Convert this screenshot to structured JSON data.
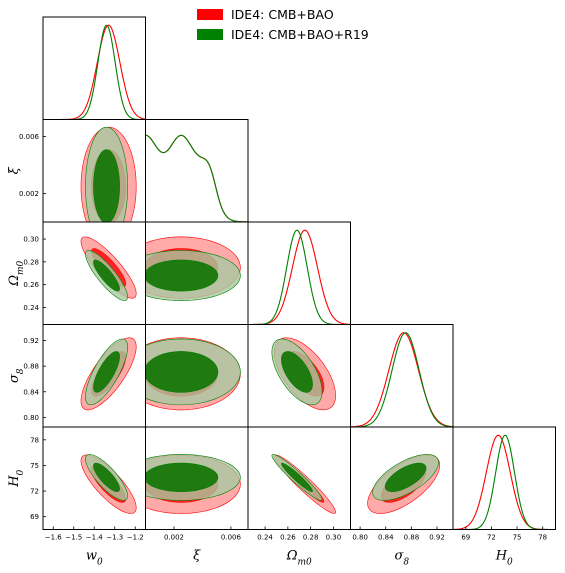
{
  "chart_data": {
    "type": "triangle",
    "title": "",
    "grid": false,
    "legend_placement": "top-right",
    "parameters": [
      {
        "key": "w0",
        "label": "w_0",
        "ticks": [
          -1.6,
          -1.5,
          -1.4,
          -1.3,
          -1.2
        ],
        "tick_labels": [
          "−1.6",
          "−1.5",
          "−1.4",
          "−1.3",
          "−1.2"
        ],
        "range": [
          -1.65,
          -1.15
        ]
      },
      {
        "key": "xi",
        "label": "ξ",
        "ticks": [
          0.002,
          0.006
        ],
        "tick_labels": [
          "0.002",
          "0.006"
        ],
        "range": [
          0.0,
          0.0072
        ]
      },
      {
        "key": "Om",
        "label": "Ω_m0",
        "ticks": [
          0.24,
          0.26,
          0.28,
          0.3
        ],
        "tick_labels": [
          "0.24",
          "0.26",
          "0.28",
          "0.30"
        ],
        "range": [
          0.225,
          0.315
        ]
      },
      {
        "key": "s8",
        "label": "σ_8",
        "ticks": [
          0.8,
          0.84,
          0.88,
          0.92
        ],
        "tick_labels": [
          "0.80",
          "0.84",
          "0.88",
          "0.92"
        ],
        "range": [
          0.785,
          0.945
        ]
      },
      {
        "key": "H0",
        "label": "H_0",
        "ticks": [
          69,
          72,
          75,
          78
        ],
        "tick_labels": [
          "69",
          "72",
          "75",
          "78"
        ],
        "range": [
          67.5,
          79.5
        ]
      }
    ],
    "series": [
      {
        "name": "IDE4: CMB+BAO",
        "color": "#ff0000",
        "fill_outer": "#ff9a9a",
        "fill_inner": "#ff1a1a",
        "mean": {
          "w0": -1.33,
          "xi": 0.0025,
          "Om": 0.275,
          "s8": 0.868,
          "H0": 72.8
        },
        "sigma": {
          "w0": 0.055,
          "xi": 0.0017,
          "Om": 0.011,
          "s8": 0.023,
          "H0": 1.4
        }
      },
      {
        "name": "IDE4: CMB+BAO+R19",
        "color": "#008000",
        "fill_outer": "#a8c8a0",
        "fill_inner": "#1f7a10",
        "mean": {
          "w0": -1.34,
          "xi": 0.0025,
          "Om": 0.268,
          "s8": 0.871,
          "H0": 73.6
        },
        "sigma": {
          "w0": 0.042,
          "xi": 0.0017,
          "Om": 0.009,
          "s8": 0.021,
          "H0": 1.1
        }
      }
    ],
    "correlations": {
      "w0|Om": -0.85,
      "w0|s8": 0.75,
      "w0|H0": -0.8,
      "w0|xi": 0.0,
      "xi|Om": 0.0,
      "xi|s8": 0.0,
      "xi|H0": 0.0,
      "Om|s8": -0.6,
      "Om|H0": -0.95,
      "s8|H0": 0.65
    },
    "legend": [
      "IDE4: CMB+BAO",
      "IDE4: CMB+BAO+R19"
    ]
  }
}
